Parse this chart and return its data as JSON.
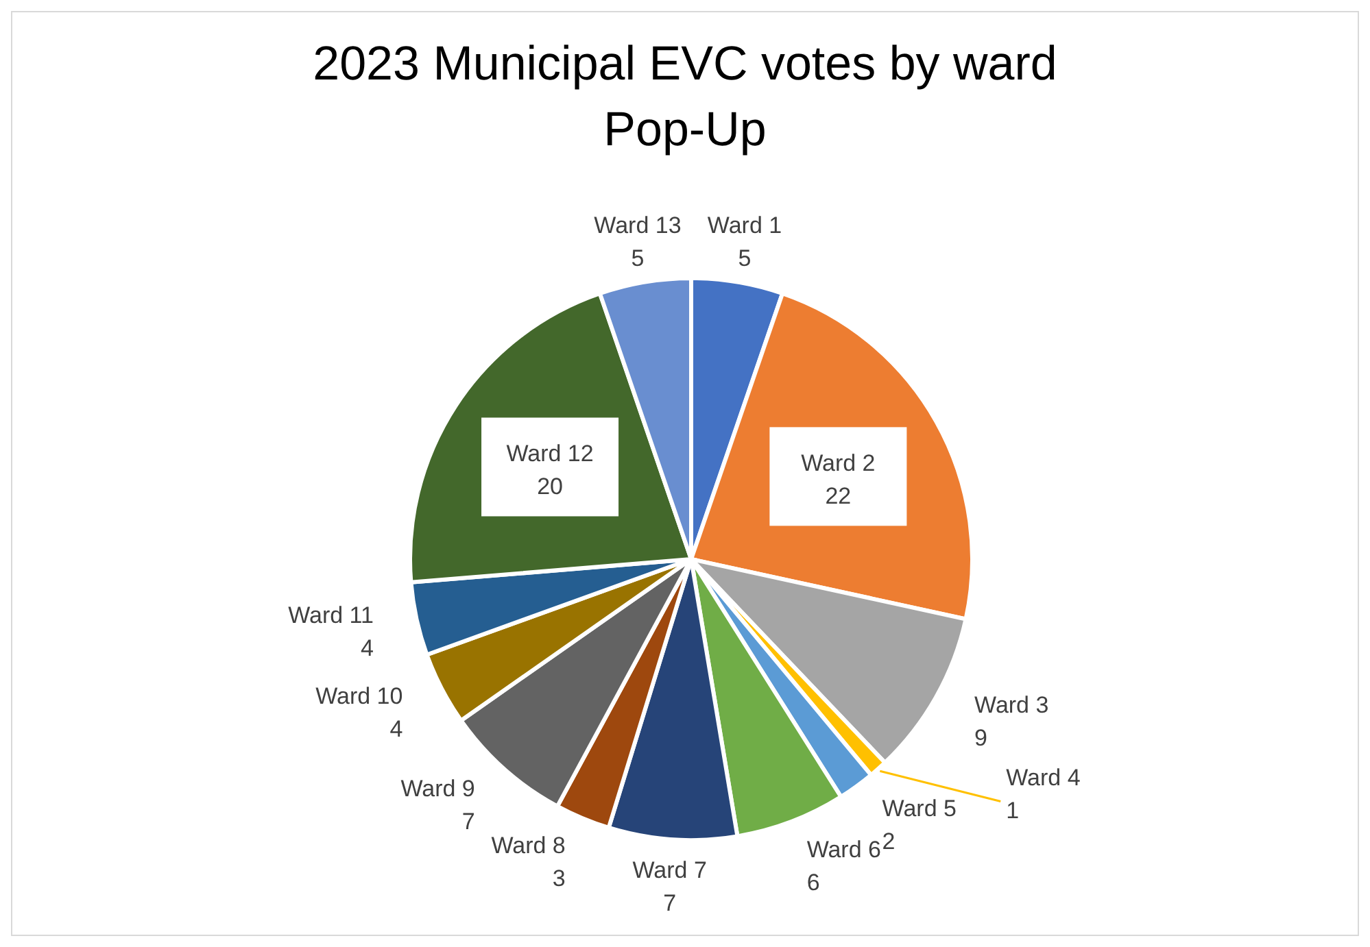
{
  "chart_data": {
    "type": "pie",
    "title": "2023 Municipal EVC votes by ward",
    "subtitle": "Pop-Up",
    "categories": [
      "Ward 1",
      "Ward 2",
      "Ward 3",
      "Ward 4",
      "Ward 5",
      "Ward 6",
      "Ward 7",
      "Ward 8",
      "Ward 9",
      "Ward 10",
      "Ward 11",
      "Ward 12",
      "Ward 13"
    ],
    "values": [
      5,
      22,
      9,
      1,
      2,
      6,
      7,
      3,
      7,
      4,
      4,
      20,
      5
    ],
    "colors": [
      "#4472c4",
      "#ed7d31",
      "#a5a5a5",
      "#ffc000",
      "#5b9bd5",
      "#70ad47",
      "#264478",
      "#9e480e",
      "#636363",
      "#997300",
      "#255e91",
      "#43682b",
      "#698ed0"
    ],
    "data_labels": true,
    "legend": false
  }
}
